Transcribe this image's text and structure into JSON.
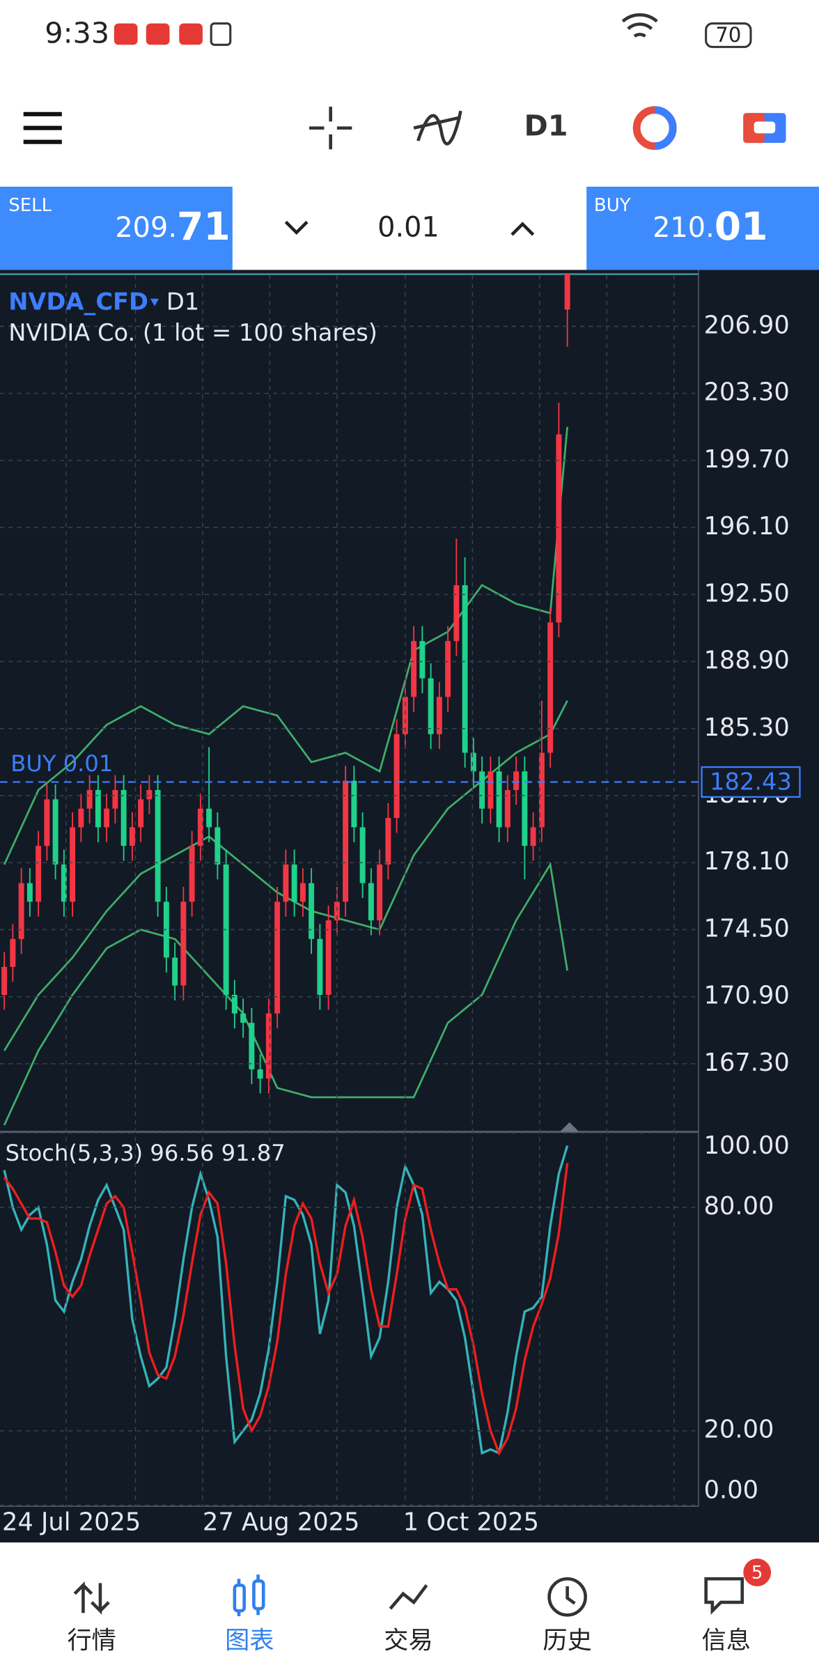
{
  "status_bar": {
    "time": "9:33",
    "battery": "70"
  },
  "toolbar": {
    "timeframe": "D1"
  },
  "trade_panel": {
    "sell_label": "SELL",
    "sell_price_head": "209.",
    "sell_price_tail": "71",
    "volume": "0.01",
    "buy_label": "BUY",
    "buy_price_head": "210.",
    "buy_price_tail": "01"
  },
  "chart_data": {
    "type": "candlestick",
    "symbol": "NVDA_CFD",
    "timeframe": "D1",
    "description": "NVIDIA Co. (1 lot = 100 shares)",
    "up_color": "#f23645",
    "down_color": "#1fd18b",
    "candles": [
      [
        171,
        173.3,
        170.2,
        172.5
      ],
      [
        172.5,
        174.8,
        171.7,
        174
      ],
      [
        174,
        177.8,
        173.2,
        177
      ],
      [
        177,
        177.8,
        175.2,
        176
      ],
      [
        176,
        179.8,
        175.2,
        179
      ],
      [
        179,
        182.3,
        178.2,
        181.5
      ],
      [
        181.5,
        182.3,
        177.2,
        178
      ],
      [
        178,
        178.8,
        175.2,
        176
      ],
      [
        176,
        180.8,
        175.2,
        180
      ],
      [
        180,
        181.8,
        179.2,
        181
      ],
      [
        181,
        182.8,
        180.2,
        182
      ],
      [
        182,
        182.8,
        179.2,
        180
      ],
      [
        180,
        181.8,
        179.2,
        181
      ],
      [
        181,
        182.8,
        180.2,
        182
      ],
      [
        182,
        182.8,
        178.2,
        179
      ],
      [
        179,
        180.8,
        178.2,
        180
      ],
      [
        180,
        182.3,
        179.2,
        181.5
      ],
      [
        181.5,
        182.8,
        180.7,
        182
      ],
      [
        182,
        182.8,
        175.2,
        176
      ],
      [
        176,
        176.8,
        172.2,
        173
      ],
      [
        173,
        173.8,
        170.7,
        171.5
      ],
      [
        171.5,
        176.8,
        170.7,
        176
      ],
      [
        176,
        179.8,
        175.2,
        179
      ],
      [
        179,
        181.8,
        178.2,
        181
      ],
      [
        181,
        184.3,
        179.2,
        180
      ],
      [
        180,
        180.8,
        177.2,
        178
      ],
      [
        178,
        178.8,
        170.2,
        171
      ],
      [
        171,
        171.8,
        169.2,
        170
      ],
      [
        170,
        170.8,
        168.7,
        169.5
      ],
      [
        169.5,
        170.3,
        166.2,
        167
      ],
      [
        167,
        167.8,
        165.7,
        166.5
      ],
      [
        166.5,
        170.8,
        165.7,
        170
      ],
      [
        170,
        176.8,
        169.2,
        176
      ],
      [
        176,
        178.8,
        175.2,
        178
      ],
      [
        178,
        178.8,
        175.2,
        176
      ],
      [
        176,
        177.8,
        175.2,
        177
      ],
      [
        177,
        177.8,
        173.2,
        174
      ],
      [
        174,
        174.8,
        170.2,
        171
      ],
      [
        171,
        175.8,
        170.2,
        175
      ],
      [
        175,
        176.8,
        174.2,
        176
      ],
      [
        176,
        183.3,
        175.2,
        182.5
      ],
      [
        182.5,
        183.3,
        179.2,
        180
      ],
      [
        180,
        180.8,
        176.2,
        177
      ],
      [
        177,
        177.8,
        174.2,
        175
      ],
      [
        175,
        178.8,
        174.2,
        178
      ],
      [
        178,
        181.3,
        177.2,
        180.5
      ],
      [
        180.5,
        185.8,
        179.7,
        185
      ],
      [
        185,
        187.8,
        184.2,
        187
      ],
      [
        187,
        190.8,
        186.2,
        190
      ],
      [
        190,
        190.8,
        187.2,
        188
      ],
      [
        188,
        188.8,
        184.2,
        185
      ],
      [
        185,
        187.8,
        184.2,
        187
      ],
      [
        187,
        190.8,
        186.2,
        190
      ],
      [
        190,
        195.5,
        189.2,
        193
      ],
      [
        193,
        194.5,
        183.2,
        184
      ],
      [
        184,
        184.8,
        182.2,
        183
      ],
      [
        183,
        183.8,
        180.2,
        181
      ],
      [
        181,
        183.8,
        180.2,
        183
      ],
      [
        183,
        183.8,
        179.2,
        180
      ],
      [
        180,
        182.8,
        179.2,
        182
      ],
      [
        182,
        183.8,
        181.2,
        183
      ],
      [
        183,
        183.8,
        177.2,
        179
      ],
      [
        179,
        180.8,
        178.2,
        180
      ],
      [
        180,
        186.8,
        179.2,
        184
      ],
      [
        184,
        191.8,
        183.2,
        191
      ],
      [
        191,
        202.8,
        190.2,
        201.1
      ],
      [
        207.8,
        210.1,
        205.8,
        209.71
      ]
    ],
    "bollinger": {
      "color": "#3fae6a",
      "x": [
        0,
        4,
        8,
        12,
        16,
        20,
        24,
        28,
        32,
        36,
        40,
        44,
        48,
        52,
        56,
        60,
        64,
        66
      ],
      "upper": [
        178,
        182,
        183.5,
        185.5,
        186.5,
        185.5,
        185,
        186.5,
        186,
        183.5,
        184,
        183,
        189.5,
        190.5,
        193,
        192,
        191.5,
        201.5
      ],
      "middle": [
        168,
        171,
        173,
        175.5,
        177.5,
        178.5,
        179.5,
        178,
        176.5,
        175.5,
        175,
        174.5,
        178.5,
        181,
        182.5,
        184,
        185,
        186.8
      ],
      "lower": [
        164,
        168,
        171,
        173.5,
        174.5,
        174,
        172,
        170,
        166,
        165.5,
        165.5,
        165.5,
        165.5,
        169.5,
        171,
        175,
        178,
        172.3
      ]
    },
    "ylim": [
      163.7,
      209.76
    ],
    "yticks": [
      {
        "value": 206.9,
        "label": "206.90"
      },
      {
        "value": 203.3,
        "label": "203.30"
      },
      {
        "value": 199.7,
        "label": "199.70"
      },
      {
        "value": 196.1,
        "label": "196.10"
      },
      {
        "value": 192.5,
        "label": "192.50"
      },
      {
        "value": 188.9,
        "label": "188.90"
      },
      {
        "value": 185.3,
        "label": "185.30"
      },
      {
        "value": 181.7,
        "label": "181.70"
      },
      {
        "value": 178.1,
        "label": "178.10"
      },
      {
        "value": 174.5,
        "label": "174.50"
      },
      {
        "value": 170.9,
        "label": "170.90"
      },
      {
        "value": 167.3,
        "label": "167.30"
      }
    ],
    "grid": true,
    "order_line": {
      "label": "BUY 0.01",
      "value": 182.43,
      "color": "#3d7eff"
    },
    "x_labels": [
      "24 Jul 2025",
      "27 Aug 2025",
      "1 Oct 2025"
    ],
    "stochastic": {
      "title": "Stoch(5,3,3) 96.56 91.87",
      "ylim": [
        0,
        100
      ],
      "yticks": [
        {
          "value": 100,
          "label": "100.00"
        },
        {
          "value": 80,
          "label": "80.00"
        },
        {
          "value": 20,
          "label": "20.00"
        },
        {
          "value": 0,
          "label": "0.00"
        }
      ],
      "main": {
        "color": "#35b3b8",
        "values": [
          90,
          80,
          74,
          78,
          80,
          70,
          55,
          52,
          60,
          66,
          75,
          82,
          86,
          80,
          74,
          50,
          40,
          32,
          34,
          37,
          50,
          66,
          80,
          89,
          82,
          72,
          40,
          17,
          20,
          23,
          30,
          42,
          60,
          83,
          82,
          78,
          70,
          46,
          55,
          86,
          84,
          75,
          58,
          40,
          45,
          60,
          80,
          91,
          86,
          78,
          57,
          60,
          58,
          55,
          45,
          30,
          14,
          15,
          14,
          25,
          40,
          52,
          53,
          56,
          75,
          89,
          96.56
        ]
      },
      "signal": {
        "color": "#f01e1e",
        "values": [
          88,
          85,
          81,
          77,
          77,
          76,
          68,
          59,
          56,
          59,
          67,
          74,
          81,
          83,
          80,
          68,
          55,
          41,
          35,
          34,
          40,
          51,
          65,
          78,
          84,
          81,
          65,
          43,
          26,
          20,
          24,
          32,
          44,
          62,
          75,
          81,
          77,
          65,
          57,
          62,
          75,
          82,
          72,
          58,
          48,
          48,
          62,
          77,
          86,
          85,
          74,
          65,
          58,
          58,
          53,
          43,
          30,
          20,
          14,
          18,
          26,
          39,
          48,
          54,
          61,
          73,
          91.87
        ]
      }
    }
  },
  "nav": {
    "items": [
      "行情",
      "图表",
      "交易",
      "历史",
      "信息"
    ],
    "badge": "5"
  }
}
